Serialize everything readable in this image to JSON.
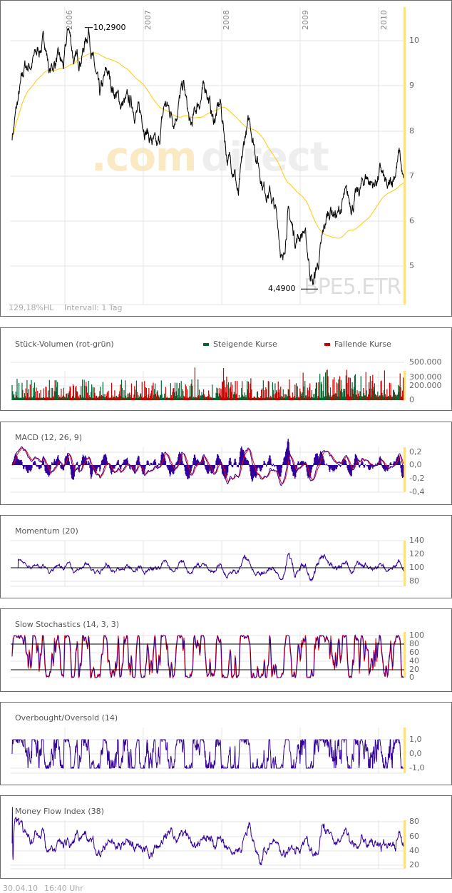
{
  "main": {
    "symbol": "BPE5.ETR",
    "watermark_a": ".com",
    "watermark_b": "direct",
    "hl_label": "129,18%HL",
    "interval_label": "Intervall: 1 Tag",
    "high_label": "10,2900",
    "low_label": "4,4900"
  },
  "footer": {
    "date": "30.04.10",
    "time": "16:40 Uhr"
  },
  "colors": {
    "price": "#000000",
    "average": "#ffcc00",
    "up": "#006633",
    "down": "#cc0000",
    "indicator": "#330099",
    "signal": "#ff0000",
    "current_marker": "#ffe080"
  },
  "chart_data": [
    {
      "type": "line",
      "title": "",
      "x_ticks": [
        "2006",
        "2007",
        "2008",
        "2009",
        "2010"
      ],
      "y_ticks": [
        "10",
        "9",
        "8",
        "7",
        "6",
        "5"
      ],
      "ylim": [
        4.2,
        10.8
      ],
      "x_unit": "year",
      "grid": true,
      "series": [
        {
          "x": [
            2005.33,
            2005.4,
            2005.49,
            2005.58,
            2005.67,
            2005.75,
            2005.81,
            2005.9,
            2005.99,
            2006.05,
            2006.13,
            2006.22,
            2006.31,
            2006.37,
            2006.45,
            2006.54,
            2006.63,
            2006.72,
            2006.85,
            2006.99,
            2007.08,
            2007.19,
            2007.28,
            2007.4,
            2007.52,
            2007.61,
            2007.7,
            2007.81,
            2007.9,
            2007.99,
            2008.08,
            2008.17,
            2008.22,
            2008.31,
            2008.37,
            2008.45,
            2008.54,
            2008.63,
            2008.72,
            2008.79,
            2008.85,
            2008.95,
            2009.06,
            2009.13,
            2009.17,
            2009.26,
            2009.34,
            2009.4,
            2009.49,
            2009.58,
            2009.67,
            2009.76,
            2009.85,
            2009.95,
            2010.04,
            2010.13,
            2010.22,
            2010.28,
            2010.33
          ],
          "y": [
            7.9,
            8.6,
            9.4,
            9.5,
            9.8,
            10.0,
            9.3,
            9.6,
            9.4,
            10.3,
            9.5,
            9.7,
            10.29,
            9.5,
            8.7,
            9.3,
            8.9,
            8.6,
            8.6,
            8.3,
            7.9,
            7.5,
            8.6,
            8.3,
            9.0,
            8.0,
            8.6,
            9.0,
            8.2,
            8.6,
            7.4,
            7.2,
            6.5,
            7.9,
            8.2,
            7.5,
            6.8,
            6.6,
            6.0,
            5.0,
            6.2,
            5.6,
            5.8,
            5.0,
            4.6,
            5.2,
            6.0,
            6.3,
            6.1,
            6.5,
            6.4,
            6.6,
            7.0,
            6.8,
            7.1,
            6.6,
            7.1,
            7.5,
            6.8
          ]
        }
      ],
      "annotations": {
        "high": 10.29,
        "low": 4.49
      }
    },
    {
      "type": "bar",
      "title": "Stück-Volumen (rot-grün)",
      "legend": [
        "Steigende Kurse",
        "Fallende Kurse"
      ],
      "y_ticks": [
        "500.000",
        "300.000",
        "200.000",
        "0"
      ]
    },
    {
      "type": "line",
      "title": "MACD (12, 26, 9)",
      "y_ticks": [
        "0,2",
        "0,0",
        "-0,2",
        "-0,4"
      ]
    },
    {
      "type": "line",
      "title": "Momentum (20)",
      "y_ticks": [
        "140",
        "120",
        "100",
        "80"
      ]
    },
    {
      "type": "line",
      "title": "Slow Stochastics (14, 3, 3)",
      "y_ticks": [
        "100",
        "80",
        "60",
        "40",
        "20",
        "0"
      ]
    },
    {
      "type": "line",
      "title": "Overbought/Oversold (14)",
      "y_ticks": [
        "1,0",
        "0,0",
        "-1,0"
      ]
    },
    {
      "type": "line",
      "title": "Money Flow Index (38)",
      "y_ticks": [
        "80",
        "60",
        "40",
        "20"
      ]
    }
  ]
}
